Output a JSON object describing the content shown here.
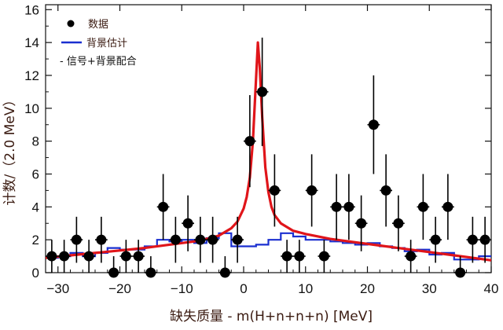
{
  "chart_data": {
    "type": "scatter",
    "xlabel": "缺失质量 - m(H+n+n+n) [MeV]",
    "ylabel": "计数/（2.0 MeV）",
    "xlim": [
      -32,
      40
    ],
    "ylim": [
      0,
      16.3
    ],
    "x_ticks": [
      -30,
      -20,
      -10,
      0,
      10,
      20,
      30,
      40
    ],
    "y_ticks": [
      0,
      2,
      4,
      6,
      8,
      10,
      12,
      14,
      16
    ],
    "x_tick_labels": [
      "−30",
      "−20",
      "−10",
      "0",
      "10",
      "20",
      "30",
      "40"
    ],
    "y_tick_labels": [
      "0",
      "2",
      "4",
      "6",
      "8",
      "10",
      "12",
      "14",
      "16"
    ],
    "grid": false,
    "legend": {
      "position": "top-left",
      "entries": [
        {
          "label": "数据",
          "kind": "marker",
          "color": "#000000"
        },
        {
          "label": "背景估计",
          "kind": "step-line",
          "color": "#1a2fd0"
        },
        {
          "label": "- 信号+背景配合",
          "kind": "text",
          "color": "#111111"
        }
      ]
    },
    "colors": {
      "data": "#000000",
      "background": "#1a2fd0",
      "fit": "#e0151a",
      "label_text": "#3a1a10"
    },
    "series": [
      {
        "name": "数据",
        "type": "errorbar",
        "points": [
          {
            "x": -31,
            "y": 1,
            "yerr": 1.0
          },
          {
            "x": -29,
            "y": 1,
            "yerr": 1.0
          },
          {
            "x": -27,
            "y": 2,
            "yerr": 1.4
          },
          {
            "x": -25,
            "y": 1,
            "yerr": 1.0
          },
          {
            "x": -23,
            "y": 2,
            "yerr": 1.4
          },
          {
            "x": -21,
            "y": 0,
            "yerr": 1.0
          },
          {
            "x": -19,
            "y": 1,
            "yerr": 1.0
          },
          {
            "x": -17,
            "y": 1,
            "yerr": 1.0
          },
          {
            "x": -15,
            "y": 0,
            "yerr": 1.0
          },
          {
            "x": -13,
            "y": 4,
            "yerr": 2.0
          },
          {
            "x": -11,
            "y": 2,
            "yerr": 1.4
          },
          {
            "x": -9,
            "y": 3,
            "yerr": 1.7
          },
          {
            "x": -7,
            "y": 2,
            "yerr": 1.4
          },
          {
            "x": -5,
            "y": 2,
            "yerr": 1.4
          },
          {
            "x": -3,
            "y": 0,
            "yerr": 1.0
          },
          {
            "x": -1,
            "y": 2,
            "yerr": 1.4
          },
          {
            "x": 1,
            "y": 8,
            "yerr": 2.8
          },
          {
            "x": 3,
            "y": 11,
            "yerr": 3.3
          },
          {
            "x": 5,
            "y": 5,
            "yerr": 2.2
          },
          {
            "x": 7,
            "y": 1,
            "yerr": 1.0
          },
          {
            "x": 9,
            "y": 1,
            "yerr": 1.0
          },
          {
            "x": 11,
            "y": 5,
            "yerr": 2.2
          },
          {
            "x": 13,
            "y": 1,
            "yerr": 1.0
          },
          {
            "x": 15,
            "y": 4,
            "yerr": 2.0
          },
          {
            "x": 17,
            "y": 4,
            "yerr": 2.0
          },
          {
            "x": 19,
            "y": 3,
            "yerr": 1.7
          },
          {
            "x": 21,
            "y": 9,
            "yerr": 3.0
          },
          {
            "x": 23,
            "y": 5,
            "yerr": 2.2
          },
          {
            "x": 25,
            "y": 3,
            "yerr": 1.7
          },
          {
            "x": 27,
            "y": 1,
            "yerr": 1.0
          },
          {
            "x": 29,
            "y": 4,
            "yerr": 2.0
          },
          {
            "x": 31,
            "y": 2,
            "yerr": 1.4
          },
          {
            "x": 33,
            "y": 4,
            "yerr": 2.0
          },
          {
            "x": 35,
            "y": 0,
            "yerr": 1.0
          },
          {
            "x": 37,
            "y": 2,
            "yerr": 1.4
          },
          {
            "x": 39,
            "y": 2,
            "yerr": 1.4
          }
        ]
      },
      {
        "name": "背景估计",
        "type": "step",
        "bin_width": 2,
        "x_start": -32,
        "values": [
          0.9,
          1.0,
          1.2,
          1.0,
          1.2,
          1.5,
          1.4,
          1.4,
          1.6,
          2.0,
          1.9,
          2.0,
          1.8,
          2.1,
          2.4,
          1.6,
          1.6,
          1.7,
          2.0,
          2.4,
          2.2,
          2.0,
          2.0,
          1.9,
          1.8,
          1.7,
          1.8,
          1.6,
          1.5,
          1.3,
          1.4,
          1.1,
          1.2,
          0.8,
          0.8,
          1.0
        ]
      },
      {
        "name": "信号+背景配合",
        "type": "line",
        "points": [
          [
            -32,
            0.9
          ],
          [
            -28,
            1.05
          ],
          [
            -24,
            1.2
          ],
          [
            -20,
            1.35
          ],
          [
            -16,
            1.5
          ],
          [
            -12,
            1.7
          ],
          [
            -8,
            1.9
          ],
          [
            -6,
            2.05
          ],
          [
            -4,
            2.25
          ],
          [
            -2,
            2.7
          ],
          [
            -1,
            3.1
          ],
          [
            0,
            3.9
          ],
          [
            0.5,
            4.6
          ],
          [
            1,
            5.8
          ],
          [
            1.5,
            8.0
          ],
          [
            2,
            11.8
          ],
          [
            2.3,
            14.0
          ],
          [
            2.6,
            12.5
          ],
          [
            3,
            9.5
          ],
          [
            3.5,
            6.4
          ],
          [
            4,
            4.9
          ],
          [
            4.5,
            4.0
          ],
          [
            5,
            3.5
          ],
          [
            6,
            3.0
          ],
          [
            8,
            2.55
          ],
          [
            10,
            2.35
          ],
          [
            14,
            2.05
          ],
          [
            18,
            1.85
          ],
          [
            22,
            1.65
          ],
          [
            26,
            1.45
          ],
          [
            30,
            1.25
          ],
          [
            34,
            1.05
          ],
          [
            38,
            0.85
          ],
          [
            40,
            0.75
          ]
        ]
      }
    ]
  }
}
